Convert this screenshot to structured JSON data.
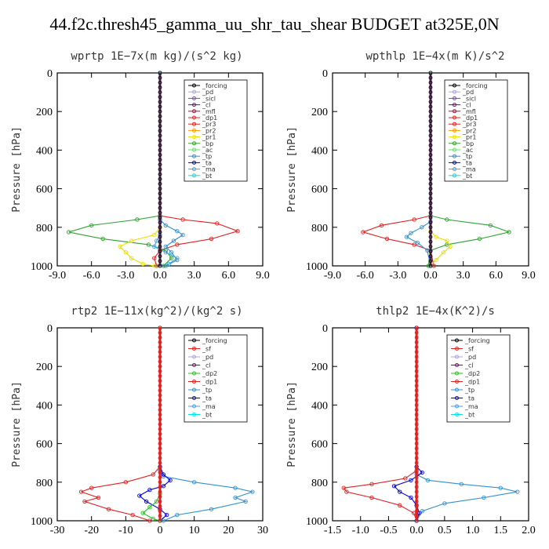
{
  "page_title": "44.f2c.thresh45_gamma_uu_shr_tau_shear  BUDGET at325E,0N",
  "colors": {
    "forcing": "#000000",
    "pd": "#b0a0e0",
    "sicl": "#8040d0",
    "cl": "#800080",
    "mfl": "#c00040",
    "dp1": "#e02020",
    "pr3": "#e02020",
    "pr2": "#ff9900",
    "pr1": "#e8e000",
    "bp": "#30a030",
    "ac": "#60e060",
    "tp": "#3090d0",
    "ta": "#0000d0",
    "ma": "#40a0e0",
    "bt": "#00e0e0",
    "sf": "#e02020",
    "dp2": "#20c020"
  },
  "chart_data": [
    {
      "type": "line",
      "title": "wprtp  1E−7x(m kg)/(s^2 kg)",
      "ylabel": "Pressure [hPa]",
      "xlim": [
        -9,
        9
      ],
      "ylim": [
        1000,
        0
      ],
      "xticks": [
        "-9.0",
        "-6.0",
        "-3.0",
        "0.0",
        "3.0",
        "6.0",
        "9.0"
      ],
      "yticks": [
        "0",
        "200",
        "400",
        "600",
        "800",
        "1000"
      ],
      "legend": [
        "_forcing",
        "_pd",
        "_sicl",
        "_cl",
        "_mfl",
        "_dp1",
        "_pr3",
        "_pr2",
        "_pr1",
        "_bp",
        "_ac",
        "_tp",
        "_ta",
        "_ma",
        "_bt"
      ],
      "series": [
        {
          "name": "_pr3",
          "x": [
            0,
            0,
            2,
            5,
            6.8,
            4.5,
            1.5,
            0,
            -0.5,
            -0.3
          ],
          "y": [
            0,
            740,
            760,
            780,
            820,
            860,
            890,
            920,
            960,
            1000
          ]
        },
        {
          "name": "_bp",
          "x": [
            0,
            0,
            -2,
            -6,
            -8,
            -5,
            -1,
            0.5,
            1,
            0.3
          ],
          "y": [
            0,
            740,
            760,
            790,
            825,
            860,
            890,
            920,
            960,
            1000
          ]
        },
        {
          "name": "_pr1",
          "x": [
            0,
            0,
            -0.5,
            -2.5,
            -3.5,
            -3,
            -2.5,
            -1.5,
            -0.5
          ],
          "y": [
            0,
            800,
            840,
            870,
            900,
            930,
            960,
            990,
            1000
          ]
        },
        {
          "name": "_tp",
          "x": [
            0,
            0,
            0.5,
            1.5,
            2,
            1.2,
            0.5,
            1,
            1.5,
            0.5
          ],
          "y": [
            0,
            760,
            790,
            820,
            840,
            870,
            900,
            930,
            970,
            1000
          ]
        },
        {
          "name": "_ma",
          "x": [
            0,
            0,
            -0.3,
            -0.5,
            0.5,
            1.5,
            0.8,
            0
          ],
          "y": [
            0,
            840,
            870,
            900,
            930,
            960,
            990,
            1000
          ]
        }
      ]
    },
    {
      "type": "line",
      "title": "wpthlp  1E−4x(m K)/s^2",
      "ylabel": "Pressure [hPa]",
      "xlim": [
        -9,
        9
      ],
      "ylim": [
        1000,
        0
      ],
      "xticks": [
        "-9.0",
        "-6.0",
        "-3.0",
        "0.0",
        "3.0",
        "6.0",
        "9.0"
      ],
      "yticks": [
        "0",
        "200",
        "400",
        "600",
        "800",
        "1000"
      ],
      "legend": [
        "_forcing",
        "_pd",
        "_sicl",
        "_cl",
        "_mfl",
        "_dp1",
        "_pr3",
        "_pr2",
        "_pr1",
        "_bp",
        "_ac",
        "_tp",
        "_ta",
        "_ma",
        "_bt"
      ],
      "series": [
        {
          "name": "_pr3",
          "x": [
            0,
            0,
            -1.5,
            -4.5,
            -6.2,
            -4,
            -1.5,
            0,
            0.3
          ],
          "y": [
            0,
            740,
            760,
            790,
            825,
            860,
            890,
            920,
            1000
          ]
        },
        {
          "name": "_bp",
          "x": [
            0,
            0,
            1.5,
            5.5,
            7.2,
            4.5,
            1.5,
            0,
            -0.2
          ],
          "y": [
            0,
            740,
            760,
            790,
            825,
            860,
            890,
            920,
            1000
          ]
        },
        {
          "name": "_pr1",
          "x": [
            0,
            0,
            0.5,
            1.5,
            1.8,
            1.2,
            0.5,
            0
          ],
          "y": [
            0,
            820,
            850,
            870,
            900,
            930,
            970,
            1000
          ]
        },
        {
          "name": "_tp",
          "x": [
            0,
            0,
            -0.8,
            -1.8,
            -2.2,
            -1.2,
            -0.3,
            0
          ],
          "y": [
            0,
            770,
            800,
            830,
            850,
            880,
            920,
            1000
          ]
        }
      ]
    },
    {
      "type": "line",
      "title": "rtp2  1E−11x(kg^2)/(kg^2 s)",
      "ylabel": "Pressure [hPa]",
      "xlim": [
        -30,
        30
      ],
      "ylim": [
        1000,
        0
      ],
      "xticks": [
        "-30",
        "-20",
        "-10",
        "0",
        "10",
        "20",
        "30"
      ],
      "yticks": [
        "0",
        "200",
        "400",
        "600",
        "800",
        "1000"
      ],
      "legend": [
        "_forcing",
        "_sf",
        "_pd",
        "_cl",
        "_dp2",
        "_dp1",
        "_tp",
        "_ta",
        "_ma",
        "_bt"
      ],
      "series": [
        {
          "name": "_dp1",
          "x": [
            0,
            0,
            -2,
            -10,
            -20,
            -23,
            -18,
            -22,
            -15,
            -8,
            -3
          ],
          "y": [
            0,
            720,
            760,
            800,
            830,
            850,
            880,
            900,
            940,
            970,
            1000
          ]
        },
        {
          "name": "_tp",
          "x": [
            0,
            0,
            1,
            10,
            22,
            27,
            22,
            25,
            15,
            5,
            1
          ],
          "y": [
            0,
            740,
            770,
            800,
            830,
            850,
            880,
            900,
            940,
            970,
            1000
          ]
        },
        {
          "name": "_ta",
          "x": [
            0,
            0,
            1,
            3,
            1,
            -3,
            -6,
            -4,
            0,
            2,
            0
          ],
          "y": [
            0,
            720,
            760,
            790,
            820,
            840,
            870,
            900,
            940,
            970,
            1000
          ]
        },
        {
          "name": "_dp2",
          "x": [
            0,
            0,
            -1,
            -3,
            -5,
            -2,
            0
          ],
          "y": [
            0,
            860,
            900,
            930,
            960,
            990,
            1000
          ]
        }
      ]
    },
    {
      "type": "line",
      "title": "thlp2  1E−4x(K^2)/s",
      "ylabel": "Pressure [hPa]",
      "xlim": [
        -1.5,
        2.0
      ],
      "ylim": [
        1000,
        0
      ],
      "xticks": [
        "-1.5",
        "-1.0",
        "-0.5",
        "0.0",
        "0.5",
        "1.0",
        "1.5",
        "2.0"
      ],
      "yticks": [
        "0",
        "200",
        "400",
        "600",
        "800",
        "1000"
      ],
      "legend": [
        "_forcing",
        "_sf",
        "_pd",
        "_cl",
        "_dp2",
        "_dp1",
        "_tp",
        "_ta",
        "_ma",
        "_bt"
      ],
      "series": [
        {
          "name": "_dp1",
          "x": [
            0,
            0,
            -0.2,
            -0.8,
            -1.3,
            -1.25,
            -0.8,
            -0.3,
            -0.05,
            0
          ],
          "y": [
            0,
            740,
            780,
            810,
            830,
            850,
            880,
            920,
            960,
            1000
          ]
        },
        {
          "name": "_tp",
          "x": [
            0,
            0,
            0.2,
            0.8,
            1.5,
            1.8,
            1.2,
            0.5,
            0.1,
            0
          ],
          "y": [
            0,
            760,
            790,
            810,
            830,
            850,
            880,
            910,
            950,
            1000
          ]
        },
        {
          "name": "_ta",
          "x": [
            0,
            0,
            0.1,
            -0.1,
            -0.4,
            -0.3,
            -0.1,
            0,
            0.05,
            0
          ],
          "y": [
            0,
            720,
            750,
            790,
            820,
            850,
            880,
            920,
            960,
            1000
          ]
        }
      ]
    }
  ]
}
